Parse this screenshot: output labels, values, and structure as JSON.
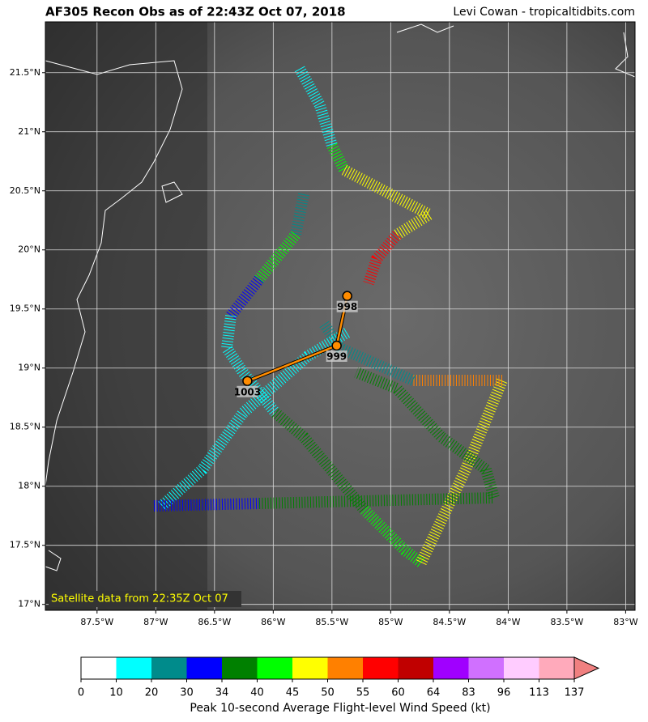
{
  "header": {
    "title": "AF305 Recon Obs as of 22:43Z Oct 07, 2018",
    "credit": "Levi Cowan - tropicaltidbits.com"
  },
  "map": {
    "xlim": [
      -87.94,
      -82.92
    ],
    "ylim": [
      16.95,
      21.93
    ],
    "xticks": [
      {
        "value": -87.5,
        "label": "87.5°W"
      },
      {
        "value": -87,
        "label": "87°W"
      },
      {
        "value": -86.5,
        "label": "86.5°W"
      },
      {
        "value": -86,
        "label": "86°W"
      },
      {
        "value": -85.5,
        "label": "85.5°W"
      },
      {
        "value": -85,
        "label": "85°W"
      },
      {
        "value": -84.5,
        "label": "84.5°W"
      },
      {
        "value": -84,
        "label": "84°W"
      },
      {
        "value": -83.5,
        "label": "83.5°W"
      },
      {
        "value": -83,
        "label": "83°W"
      }
    ],
    "yticks": [
      {
        "value": 17,
        "label": "17°N"
      },
      {
        "value": 17.5,
        "label": "17.5°N"
      },
      {
        "value": 18,
        "label": "18°N"
      },
      {
        "value": 18.5,
        "label": "18.5°N"
      },
      {
        "value": 19,
        "label": "19°N"
      },
      {
        "value": 19.5,
        "label": "19.5°N"
      },
      {
        "value": 20,
        "label": "20°N"
      },
      {
        "value": 20.5,
        "label": "20.5°N"
      },
      {
        "value": 21,
        "label": "21°N"
      },
      {
        "value": 21.5,
        "label": "21.5°N"
      }
    ],
    "annotation": "Satellite data from 22:35Z Oct 07",
    "observations": [
      {
        "lon": -85.37,
        "lat": 19.61,
        "pressure": 998
      },
      {
        "lon": -85.46,
        "lat": 19.19,
        "pressure": 999
      },
      {
        "lon": -86.22,
        "lat": 18.89,
        "pressure": 1003
      }
    ],
    "path_color": "#ff8c00"
  },
  "colorbar": {
    "bounds": [
      0,
      10,
      20,
      30,
      34,
      40,
      45,
      50,
      55,
      60,
      64,
      83,
      96,
      113,
      137
    ],
    "colors": [
      "#ffffff",
      "#00ffff",
      "#008b8b",
      "#0000ff",
      "#008000",
      "#00ff00",
      "#ffff00",
      "#ff8000",
      "#ff0000",
      "#c00000",
      "#a000ff",
      "#d070ff",
      "#ffccff",
      "#ffaabb"
    ],
    "extend_color": "#f08080",
    "label": "Peak 10-second Average Flight-level Wind Speed (kt)"
  }
}
